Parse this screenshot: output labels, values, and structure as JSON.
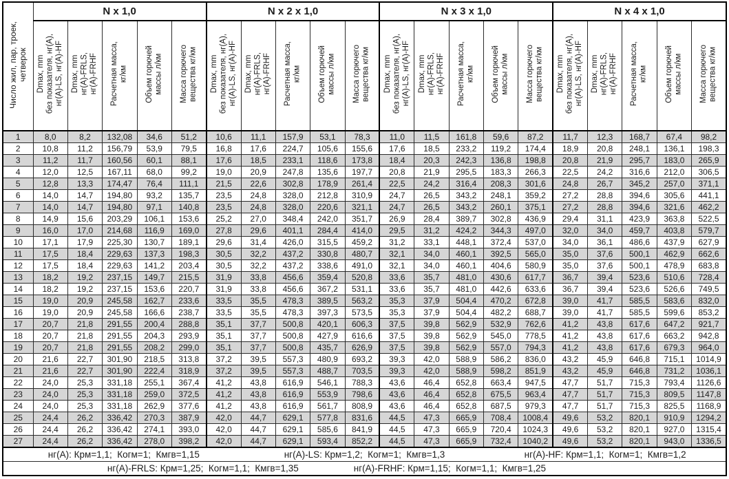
{
  "table": {
    "corner_header": "Число жил, пар, троек,\nчетверок",
    "groups": [
      "N x 1,0",
      "N x 2 x 1,0",
      "N x 3 x 1,0",
      "N x 4 x 1,0"
    ],
    "column_headers": [
      "Dmax, mm\nбез показателя, нг(А),\nнг(А)-LS, нг(А)-HF",
      "Dmax, mm\nнг(А)-FRLS,\nнг(А)-FRHF",
      "Расчетная масса,\nкг/км",
      "Объем горючей\nмассы л/км",
      "Масса горючего\nвещества кг/км"
    ],
    "rows": [
      [
        "1",
        "8,0",
        "8,2",
        "132,08",
        "34,6",
        "51,2",
        "10,6",
        "11,1",
        "157,9",
        "53,1",
        "78,3",
        "11,0",
        "11,5",
        "161,8",
        "59,6",
        "87,2",
        "11,7",
        "12,3",
        "168,7",
        "67,4",
        "98,2"
      ],
      [
        "2",
        "10,8",
        "11,2",
        "156,79",
        "53,9",
        "79,5",
        "16,8",
        "17,6",
        "224,7",
        "105,6",
        "155,6",
        "17,6",
        "18,5",
        "233,2",
        "119,2",
        "174,4",
        "18,9",
        "20,8",
        "248,1",
        "136,1",
        "198,3"
      ],
      [
        "3",
        "11,2",
        "11,7",
        "160,56",
        "60,1",
        "88,1",
        "17,6",
        "18,5",
        "233,1",
        "118,6",
        "173,8",
        "18,4",
        "20,3",
        "242,3",
        "136,8",
        "198,8",
        "20,8",
        "21,9",
        "295,7",
        "183,0",
        "265,9"
      ],
      [
        "4",
        "12,0",
        "12,5",
        "167,11",
        "68,0",
        "99,2",
        "19,0",
        "20,9",
        "247,8",
        "135,6",
        "197,7",
        "20,8",
        "21,9",
        "295,5",
        "183,3",
        "266,3",
        "22,5",
        "24,2",
        "316,6",
        "212,0",
        "306,5"
      ],
      [
        "5",
        "12,8",
        "13,3",
        "174,47",
        "76,4",
        "111,1",
        "21,5",
        "22,6",
        "302,8",
        "178,9",
        "261,4",
        "22,5",
        "24,2",
        "316,4",
        "208,3",
        "301,6",
        "24,8",
        "26,7",
        "345,2",
        "257,0",
        "371,1"
      ],
      [
        "6",
        "14,0",
        "14,7",
        "194,80",
        "93,2",
        "135,7",
        "23,5",
        "24,8",
        "328,0",
        "212,8",
        "310,9",
        "24,7",
        "26,5",
        "343,2",
        "248,1",
        "359,2",
        "27,2",
        "28,8",
        "394,6",
        "305,6",
        "441,1"
      ],
      [
        "7",
        "14,0",
        "14,7",
        "194,80",
        "97,1",
        "140,8",
        "23,5",
        "24,8",
        "328,0",
        "220,6",
        "321,1",
        "24,7",
        "26,5",
        "343,2",
        "260,1",
        "375,1",
        "27,2",
        "28,8",
        "394,6",
        "321,6",
        "462,2"
      ],
      [
        "8",
        "14,9",
        "15,6",
        "203,29",
        "106,1",
        "153,6",
        "25,2",
        "27,0",
        "348,4",
        "242,0",
        "351,7",
        "26,9",
        "28,4",
        "389,7",
        "302,8",
        "436,9",
        "29,4",
        "31,1",
        "423,9",
        "363,8",
        "522,5"
      ],
      [
        "9",
        "16,0",
        "17,0",
        "214,68",
        "116,9",
        "169,0",
        "27,8",
        "29,6",
        "401,1",
        "284,4",
        "414,0",
        "29,5",
        "31,2",
        "424,2",
        "344,3",
        "497,0",
        "32,0",
        "34,0",
        "459,7",
        "403,8",
        "579,7"
      ],
      [
        "10",
        "17,1",
        "17,9",
        "225,30",
        "130,7",
        "189,1",
        "29,6",
        "31,4",
        "426,0",
        "315,5",
        "459,2",
        "31,2",
        "33,1",
        "448,1",
        "372,4",
        "537,0",
        "34,0",
        "36,1",
        "486,6",
        "437,9",
        "627,9"
      ],
      [
        "11",
        "17,5",
        "18,4",
        "229,63",
        "137,3",
        "198,3",
        "30,5",
        "32,2",
        "437,2",
        "330,8",
        "480,7",
        "32,1",
        "34,0",
        "460,1",
        "392,5",
        "565,0",
        "35,0",
        "37,6",
        "500,1",
        "462,9",
        "662,6"
      ],
      [
        "12",
        "17,5",
        "18,4",
        "229,63",
        "141,2",
        "203,4",
        "30,5",
        "32,2",
        "437,2",
        "338,6",
        "491,0",
        "32,1",
        "34,0",
        "460,1",
        "404,6",
        "580,9",
        "35,0",
        "37,6",
        "500,1",
        "478,9",
        "683,8"
      ],
      [
        "13",
        "18,2",
        "19,2",
        "237,15",
        "149,7",
        "215,5",
        "31,9",
        "33,8",
        "456,6",
        "359,4",
        "520,8",
        "33,6",
        "35,7",
        "481,0",
        "430,6",
        "617,7",
        "36,7",
        "39,4",
        "523,6",
        "510,6",
        "728,4"
      ],
      [
        "14",
        "18,2",
        "19,2",
        "237,15",
        "153,6",
        "220,7",
        "31,9",
        "33,8",
        "456,6",
        "367,2",
        "531,1",
        "33,6",
        "35,7",
        "481,0",
        "442,6",
        "633,6",
        "36,7",
        "39,4",
        "523,6",
        "526,6",
        "749,5"
      ],
      [
        "15",
        "19,0",
        "20,9",
        "245,58",
        "162,7",
        "233,6",
        "33,5",
        "35,5",
        "478,3",
        "389,5",
        "563,2",
        "35,3",
        "37,9",
        "504,4",
        "470,2",
        "672,8",
        "39,0",
        "41,7",
        "585,5",
        "583,6",
        "832,0"
      ],
      [
        "16",
        "19,0",
        "20,9",
        "245,58",
        "166,6",
        "238,7",
        "33,5",
        "35,5",
        "478,3",
        "397,3",
        "573,5",
        "35,3",
        "37,9",
        "504,4",
        "482,2",
        "688,7",
        "39,0",
        "41,7",
        "585,5",
        "599,6",
        "853,2"
      ],
      [
        "17",
        "20,7",
        "21,8",
        "291,55",
        "200,4",
        "288,8",
        "35,1",
        "37,7",
        "500,8",
        "420,1",
        "606,3",
        "37,5",
        "39,8",
        "562,9",
        "532,9",
        "762,6",
        "41,2",
        "43,8",
        "617,6",
        "647,2",
        "921,7"
      ],
      [
        "18",
        "20,7",
        "21,8",
        "291,55",
        "204,3",
        "293,9",
        "35,1",
        "37,7",
        "500,8",
        "427,9",
        "616,6",
        "37,5",
        "39,8",
        "562,9",
        "545,0",
        "778,5",
        "41,2",
        "43,8",
        "617,6",
        "663,2",
        "942,8"
      ],
      [
        "19",
        "20,7",
        "21,8",
        "291,55",
        "208,2",
        "299,0",
        "35,1",
        "37,7",
        "500,8",
        "435,7",
        "626,9",
        "37,5",
        "39,8",
        "562,9",
        "557,0",
        "794,3",
        "41,2",
        "43,8",
        "617,6",
        "679,3",
        "964,0"
      ],
      [
        "20",
        "21,6",
        "22,7",
        "301,90",
        "218,5",
        "313,8",
        "37,2",
        "39,5",
        "557,3",
        "480,9",
        "693,2",
        "39,3",
        "42,0",
        "588,9",
        "586,2",
        "836,0",
        "43,2",
        "45,9",
        "646,8",
        "715,1",
        "1014,9"
      ],
      [
        "21",
        "21,6",
        "22,7",
        "301,90",
        "222,4",
        "318,9",
        "37,2",
        "39,5",
        "557,3",
        "488,7",
        "703,5",
        "39,3",
        "42,0",
        "588,9",
        "598,2",
        "851,9",
        "43,2",
        "45,9",
        "646,8",
        "731,2",
        "1036,1"
      ],
      [
        "22",
        "24,0",
        "25,3",
        "331,18",
        "255,1",
        "367,4",
        "41,2",
        "43,8",
        "616,9",
        "546,1",
        "788,3",
        "43,6",
        "46,4",
        "652,8",
        "663,4",
        "947,5",
        "47,7",
        "51,7",
        "715,3",
        "793,4",
        "1126,6"
      ],
      [
        "23",
        "24,0",
        "25,3",
        "331,18",
        "259,0",
        "372,5",
        "41,2",
        "43,8",
        "616,9",
        "553,9",
        "798,6",
        "43,6",
        "46,4",
        "652,8",
        "675,5",
        "963,4",
        "47,7",
        "51,7",
        "715,3",
        "809,5",
        "1147,8"
      ],
      [
        "24",
        "24,0",
        "25,3",
        "331,18",
        "262,9",
        "377,6",
        "41,2",
        "43,8",
        "616,9",
        "561,7",
        "808,9",
        "43,6",
        "46,4",
        "652,8",
        "687,5",
        "979,3",
        "47,7",
        "51,7",
        "715,3",
        "825,5",
        "1168,9"
      ],
      [
        "25",
        "24,4",
        "26,2",
        "336,42",
        "270,3",
        "387,9",
        "42,0",
        "44,7",
        "629,1",
        "577,8",
        "831,6",
        "44,5",
        "47,3",
        "665,9",
        "708,4",
        "1008,4",
        "49,6",
        "53,2",
        "820,1",
        "910,9",
        "1294,2"
      ],
      [
        "26",
        "24,4",
        "26,2",
        "336,42",
        "274,1",
        "393,0",
        "42,0",
        "44,7",
        "629,1",
        "585,6",
        "841,9",
        "44,5",
        "47,3",
        "665,9",
        "720,4",
        "1024,3",
        "49,6",
        "53,2",
        "820,1",
        "927,0",
        "1315,4"
      ],
      [
        "27",
        "24,4",
        "26,2",
        "336,42",
        "278,0",
        "398,2",
        "42,0",
        "44,7",
        "629,1",
        "593,4",
        "852,2",
        "44,5",
        "47,3",
        "665,9",
        "732,4",
        "1040,2",
        "49,6",
        "53,2",
        "820,1",
        "943,0",
        "1336,5"
      ]
    ]
  },
  "footer": {
    "line1": [
      "нг(А): Крм=1,1;  Когм=1;  Кмгв=1,15",
      "нг(А)-LS: Крм=1,2;  Когм=1;  Кмгв=1,3",
      "нг(А)-HF: Крм=1,1;  Когм=1;  Кмгв=1,2"
    ],
    "line2": [
      "нг(А)-FRLS: Крм=1,25;  Когм=1,1;  Кмгв=1,35",
      "нг(А)-FRHF: Крм=1,15;  Когм=1,1;  Кмгв=1,25"
    ]
  },
  "colors": {
    "row_stripe": "#d6d6d6",
    "border": "#000000"
  }
}
